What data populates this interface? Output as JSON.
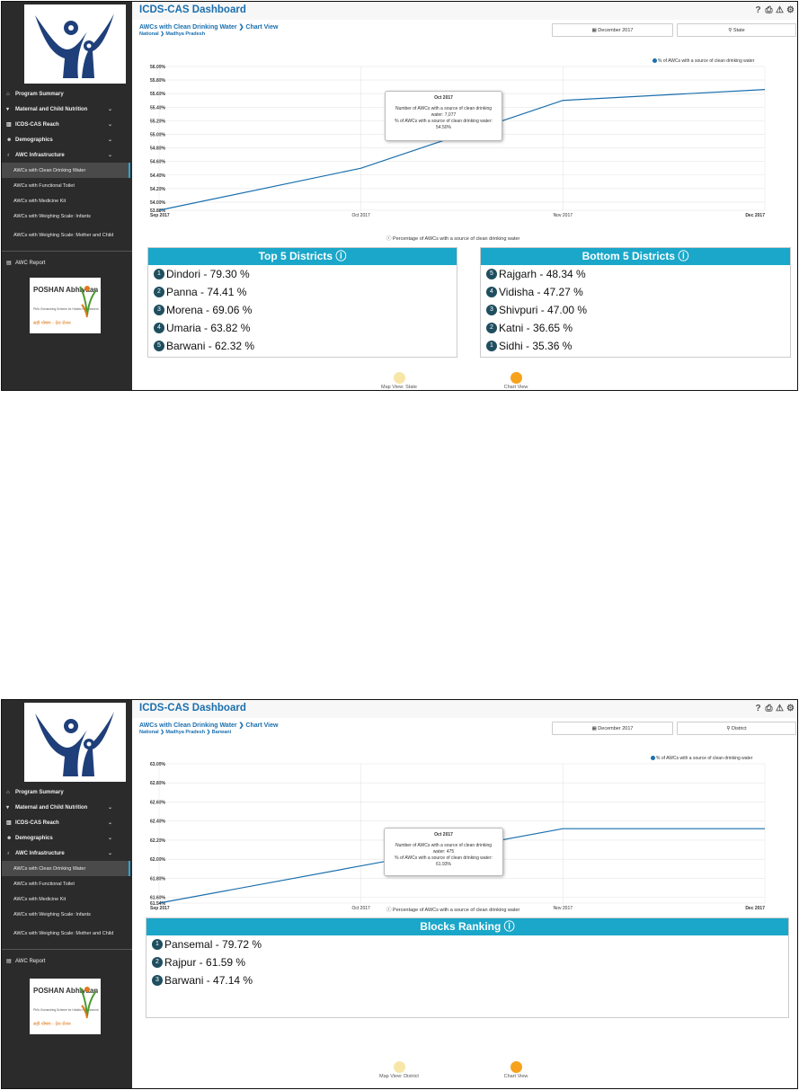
{
  "colors": {
    "accent": "#1a6fae",
    "panel_header": "#1aa7c9",
    "badge": "#1f4e5f",
    "map_view_dot": "#f8e6a8",
    "chart_view_dot": "#f7a21b",
    "sidebar_bg": "#2b2b2b"
  },
  "screens": [
    {
      "app_title": "ICDS-CAS Dashboard",
      "page_heading": "AWCs with Clean Drinking Water",
      "view_label": "Chart View",
      "breadcrumb": [
        "National",
        "Madhya Pradesh"
      ],
      "month_filter": "December 2017",
      "location_filter": "State",
      "sidebar": {
        "items": [
          {
            "label": "Program Summary",
            "icon": "home-icon",
            "chevron": false
          },
          {
            "label": "Maternal and Child Nutrition",
            "icon": "nutrition-icon",
            "chevron": true
          },
          {
            "label": "ICDS-CAS Reach",
            "icon": "bar-chart-icon",
            "chevron": true
          },
          {
            "label": "Demographics",
            "icon": "people-icon",
            "chevron": true
          },
          {
            "label": "AWC Infrastructure",
            "icon": "infrastructure-icon",
            "chevron": true
          }
        ],
        "subitems": [
          {
            "label": "AWCs with Clean Drinking Water",
            "active": true
          },
          {
            "label": "AWCs with Functional Toilet",
            "active": false
          },
          {
            "label": "AWCs with Medicine Kit",
            "active": false
          },
          {
            "label": "AWCs with Weighing Scale: Infants",
            "active": false
          },
          {
            "label": "AWCs with Weighing Scale: Mother and Child",
            "active": false
          }
        ],
        "report_label": "AWC Report"
      },
      "poshan": {
        "title": "POSHAN Abhiyaan",
        "tagline": "PM's Overarching Scheme for Holistic Nourishment",
        "hindi": "सही पोषण - देश रोशन"
      },
      "chart_data": {
        "type": "line",
        "x": [
          "Sep 2017",
          "Oct 2017",
          "Nov 2017",
          "Dec 2017"
        ],
        "series": [
          {
            "name": "% of AWCs with a source of clean drinking water",
            "values": [
              53.88,
              54.5,
              55.5,
              55.66
            ]
          }
        ],
        "yticks": [
          "53.88%",
          "54.00%",
          "54.20%",
          "54.40%",
          "54.60%",
          "54.80%",
          "55.00%",
          "55.20%",
          "55.40%",
          "55.60%",
          "55.80%",
          "56.00%"
        ],
        "ylim": [
          53.88,
          56.0
        ],
        "xlabel": "Percentage of AWCs with a source of clean drinking water",
        "legend_position": "top-right",
        "grid": true
      },
      "tooltip": {
        "title": "Oct 2017",
        "line1": "Number of AWCs with a source of clean drinking water: 7,077",
        "line2": "% of AWCs with a source of clean drinking water: 54.50%"
      },
      "rankings": [
        {
          "title": "Top 5 Districts",
          "rows": [
            {
              "rank": "1",
              "text": "Dindori - 79.30 %"
            },
            {
              "rank": "2",
              "text": "Panna - 74.41 %"
            },
            {
              "rank": "3",
              "text": "Morena - 69.06 %"
            },
            {
              "rank": "4",
              "text": "Umaria - 63.82 %"
            },
            {
              "rank": "5",
              "text": "Barwani - 62.32 %"
            }
          ]
        },
        {
          "title": "Bottom 5 Districts",
          "rows": [
            {
              "rank": "5",
              "text": "Rajgarh - 48.34 %"
            },
            {
              "rank": "4",
              "text": "Vidisha - 47.27 %"
            },
            {
              "rank": "3",
              "text": "Shivpuri - 47.00 %"
            },
            {
              "rank": "2",
              "text": "Katni - 36.65 %"
            },
            {
              "rank": "1",
              "text": "Sidhi - 35.36 %"
            }
          ]
        }
      ],
      "views": {
        "map": "Map View: State",
        "chart": "Chart View"
      }
    },
    {
      "app_title": "ICDS-CAS Dashboard",
      "page_heading": "AWCs with Clean Drinking Water",
      "view_label": "Chart View",
      "breadcrumb": [
        "National",
        "Madhya Pradesh",
        "Barwani"
      ],
      "month_filter": "December 2017",
      "location_filter": "District",
      "sidebar": {
        "items": [
          {
            "label": "Program Summary",
            "icon": "home-icon",
            "chevron": false
          },
          {
            "label": "Maternal and Child Nutrition",
            "icon": "nutrition-icon",
            "chevron": true
          },
          {
            "label": "ICDS-CAS Reach",
            "icon": "bar-chart-icon",
            "chevron": true
          },
          {
            "label": "Demographics",
            "icon": "people-icon",
            "chevron": true
          },
          {
            "label": "AWC Infrastructure",
            "icon": "infrastructure-icon",
            "chevron": true
          }
        ],
        "subitems": [
          {
            "label": "AWCs with Clean Drinking Water",
            "active": true
          },
          {
            "label": "AWCs with Functional Toilet",
            "active": false
          },
          {
            "label": "AWCs with Medicine Kit",
            "active": false
          },
          {
            "label": "AWCs with Weighing Scale: Infants",
            "active": false
          },
          {
            "label": "AWCs with Weighing Scale: Mother and Child",
            "active": false
          }
        ],
        "report_label": "AWC Report"
      },
      "poshan": {
        "title": "POSHAN Abhiyaan",
        "tagline": "PM's Overarching Scheme for Holistic Nourishment",
        "hindi": "सही पोषण - देश रोशन"
      },
      "chart_data": {
        "type": "line",
        "x": [
          "Sep 2017",
          "Oct 2017",
          "Nov 2017",
          "Dec 2017"
        ],
        "series": [
          {
            "name": "% of AWCs with a source of clean drinking water",
            "values": [
              61.54,
              61.93,
              62.32,
              62.32
            ]
          }
        ],
        "yticks": [
          "61.54%",
          "61.60%",
          "61.80%",
          "62.00%",
          "62.20%",
          "62.40%",
          "62.60%",
          "62.80%",
          "63.00%"
        ],
        "ylim": [
          61.54,
          63.0
        ],
        "xlabel": "Percentage of AWCs with a source of clean drinking water",
        "legend_position": "top-right",
        "grid": true
      },
      "tooltip": {
        "title": "Oct 2017",
        "line1": "Number of AWCs with a source of clean drinking water: 475",
        "line2": "% of AWCs with a source of clean drinking water: 61.93%"
      },
      "rankings": [
        {
          "title": "Blocks Ranking",
          "rows": [
            {
              "rank": "1",
              "text": "Pansemal - 79.72 %"
            },
            {
              "rank": "2",
              "text": "Rajpur - 61.59 %"
            },
            {
              "rank": "3",
              "text": "Barwani - 47.14 %"
            }
          ]
        }
      ],
      "views": {
        "map": "Map View: District",
        "chart": "Chart View"
      }
    }
  ]
}
